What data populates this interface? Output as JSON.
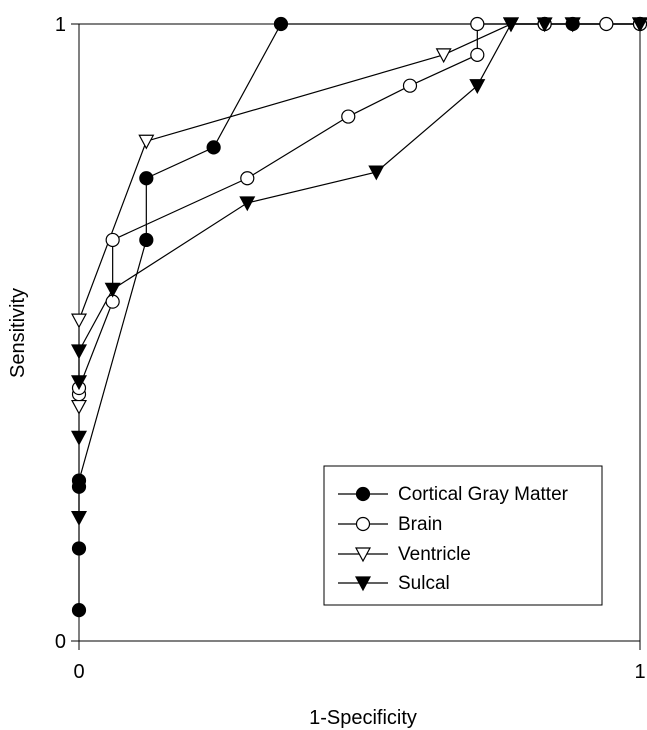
{
  "chart_data": {
    "type": "line",
    "title": "",
    "xlabel": "1-Specificity",
    "ylabel": "Sensitivity",
    "xlim": [
      0,
      1
    ],
    "ylim": [
      0,
      1
    ],
    "x_ticks": [
      "0",
      "1"
    ],
    "y_ticks": [
      "0",
      "1"
    ],
    "grid": false,
    "legend_position": "lower-right",
    "series": [
      {
        "name": "Cortical Gray Matter",
        "marker": "filled-circle",
        "color": "#000000",
        "points": [
          [
            0,
            0.05
          ],
          [
            0,
            0.15
          ],
          [
            0,
            0.25
          ],
          [
            0,
            0.26
          ],
          [
            0.12,
            0.65
          ],
          [
            0.12,
            0.75
          ],
          [
            0.24,
            0.8
          ],
          [
            0.36,
            1
          ],
          [
            0.83,
            1
          ],
          [
            0.88,
            1
          ],
          [
            1,
            1
          ]
        ]
      },
      {
        "name": "Brain",
        "marker": "open-circle",
        "color": "#000000",
        "points": [
          [
            0,
            0.4
          ],
          [
            0,
            0.41
          ],
          [
            0.06,
            0.55
          ],
          [
            0.06,
            0.65
          ],
          [
            0.3,
            0.75
          ],
          [
            0.48,
            0.85
          ],
          [
            0.59,
            0.9
          ],
          [
            0.71,
            0.95
          ],
          [
            0.71,
            1
          ],
          [
            0.83,
            1
          ],
          [
            0.94,
            1
          ],
          [
            1,
            1
          ]
        ]
      },
      {
        "name": "Ventricle",
        "marker": "open-triangle-down",
        "color": "#000000",
        "points": [
          [
            0,
            0.38
          ],
          [
            0,
            0.52
          ],
          [
            0.12,
            0.81
          ],
          [
            0.65,
            0.95
          ],
          [
            0.77,
            1
          ],
          [
            0.88,
            1
          ],
          [
            1,
            1
          ]
        ]
      },
      {
        "name": "Sulcal",
        "marker": "filled-triangle-down",
        "color": "#000000",
        "points": [
          [
            0,
            0.2
          ],
          [
            0,
            0.33
          ],
          [
            0,
            0.42
          ],
          [
            0,
            0.47
          ],
          [
            0.06,
            0.57
          ],
          [
            0.3,
            0.71
          ],
          [
            0.53,
            0.76
          ],
          [
            0.71,
            0.9
          ],
          [
            0.77,
            1
          ],
          [
            0.83,
            1
          ],
          [
            0.88,
            1
          ],
          [
            1,
            1
          ]
        ]
      }
    ]
  }
}
